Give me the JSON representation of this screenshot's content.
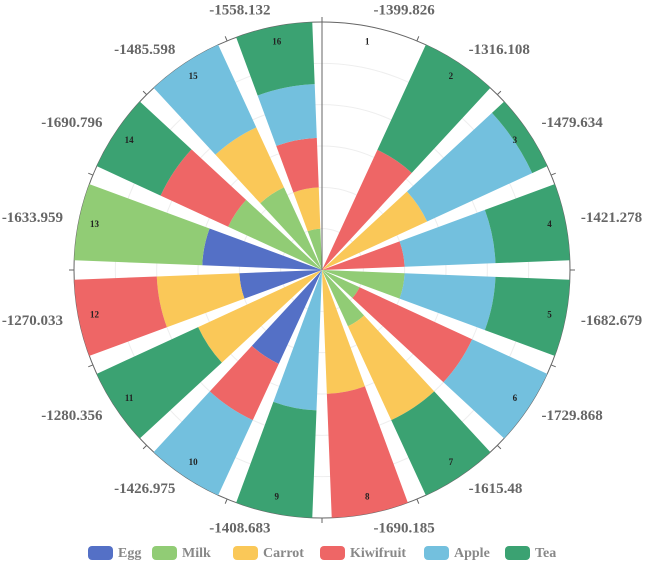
{
  "chart_data": {
    "type": "polar_stacked_bar",
    "categories": [
      "1",
      "2",
      "3",
      "4",
      "5",
      "6",
      "7",
      "8",
      "9",
      "10",
      "11",
      "12",
      "13",
      "14",
      "15",
      "16"
    ],
    "angle_labels": [
      "-1399.826",
      "-1316.108",
      "-1479.634",
      "-1421.278",
      "-1682.679",
      "-1729.868",
      "-1615.48",
      "-1690.185",
      "-1408.683",
      "-1426.975",
      "-1280.356",
      "-1270.033",
      "-1633.959",
      "-1690.796",
      "-1485.598",
      "-1558.132"
    ],
    "rlim": [
      0,
      6
    ],
    "rticks": [
      0,
      1,
      2,
      3,
      4,
      5,
      6
    ],
    "grid": true,
    "legend": "bottom",
    "series": [
      {
        "name": "Egg",
        "color": "#5470c6",
        "values": [
          0,
          0,
          0,
          0,
          0,
          0,
          0,
          0,
          0,
          2.5,
          0,
          2,
          2.9,
          0,
          0,
          0
        ]
      },
      {
        "name": "Milk",
        "color": "#91cc75",
        "values": [
          0,
          0,
          0,
          0,
          2,
          1,
          1.5,
          0,
          0,
          0,
          0,
          0,
          3.1,
          2.5,
          2.2,
          1
        ]
      },
      {
        "name": "Carrot",
        "color": "#fac858",
        "values": [
          0,
          0,
          2.8,
          0,
          0,
          0,
          2.5,
          3,
          0,
          0,
          3.3,
          2,
          0,
          0,
          1.6,
          1
        ]
      },
      {
        "name": "Kiwifruit",
        "color": "#ee6666",
        "values": [
          0,
          3.2,
          0,
          2,
          0,
          3,
          0,
          3,
          0,
          1.5,
          0,
          2,
          0,
          1.8,
          0,
          1.2
        ]
      },
      {
        "name": "Apple",
        "color": "#73c0de",
        "values": [
          0,
          0,
          2.8,
          2.2,
          2.2,
          2,
          0,
          0,
          3.4,
          2,
          0,
          0,
          0,
          0,
          2.2,
          1.3
        ]
      },
      {
        "name": "Tea",
        "color": "#3ba272",
        "values": [
          0,
          2.8,
          0.4,
          1.8,
          1.8,
          0,
          2,
          0,
          2.6,
          0,
          2.7,
          0,
          0,
          1.7,
          0,
          1.5
        ]
      }
    ]
  }
}
